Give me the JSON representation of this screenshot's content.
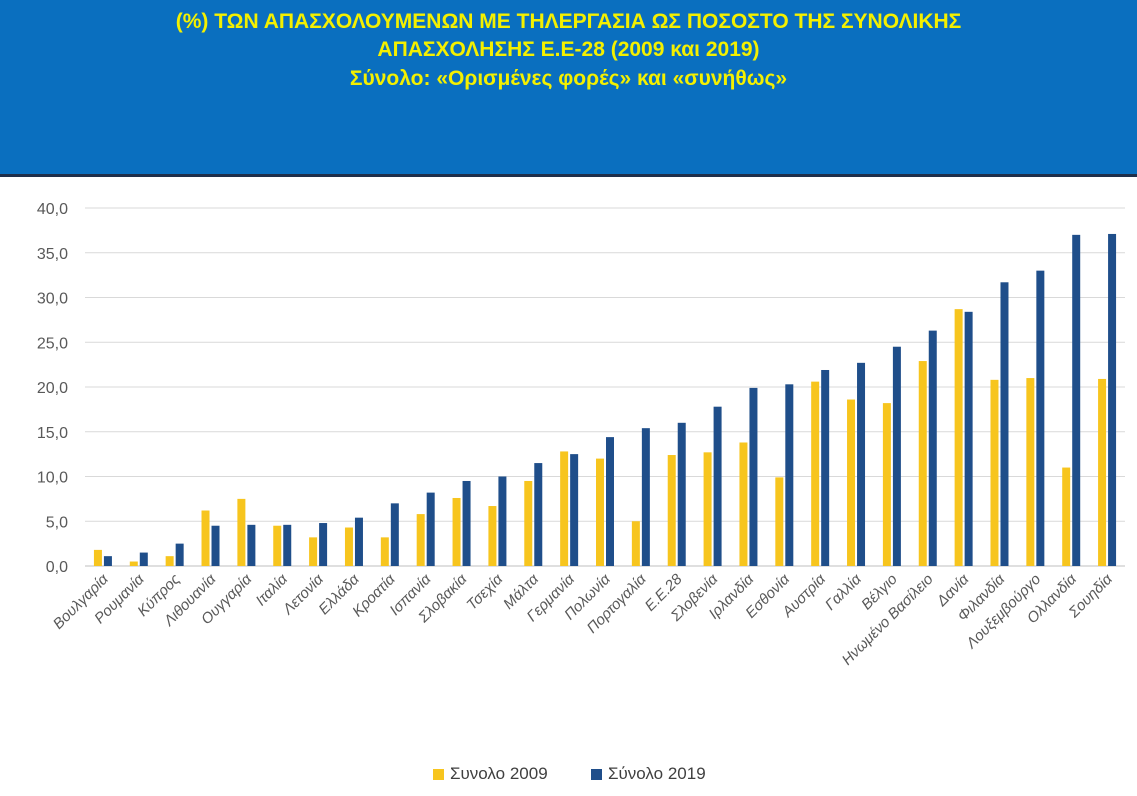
{
  "header": {
    "title_line1": "(%) ΤΩΝ ΑΠΑΣΧΟΛΟΥΜΕΝΩΝ  ΜΕ ΤΗΛΕΡΓΑΣΙΑ ΩΣ ΠΟΣΟΣΤΟ ΤΗΣ ΣΥΝΟΛΙΚΗΣ",
    "title_line2": "ΑΠΑΣΧΟΛΗΣΗΣ  Ε.Ε-28 (2009 και 2019)",
    "title_line3": "Σύνολο: «Ορισμένες φορές» και «συνήθως»"
  },
  "colors": {
    "banner": "#0a6fbf",
    "title": "#f4f000",
    "series_2009": "#f7c51e",
    "series_2019": "#1f4e8a"
  },
  "chart_data": {
    "type": "bar",
    "categories": [
      "Βουλγαρία",
      "Ρουμανία",
      "Κύπρος",
      "Λιθουανία",
      "Ουγγαρία",
      "Ιταλία",
      "Λετονία",
      "Ελλάδα",
      "Κροατία",
      "Ισπανία",
      "Σλοβακία",
      "Τσεχία",
      "Μάλτα",
      "Γερμανία",
      "Πολωνία",
      "Πορτογαλία",
      "Ε.Ε.28",
      "Σλοβενία",
      "Ιρλανδία",
      "Εσθονία",
      "Αυστρία",
      "Γαλλία",
      "Βέλγιο",
      "Ηνωμένο Βασίλειο",
      "Δανία",
      "Φιλανδία",
      "Λουξεμβούργο",
      "Ολλανδία",
      "Σουηδία"
    ],
    "series": [
      {
        "name": "Συνολο 2009",
        "values": [
          1.8,
          0.5,
          1.1,
          6.2,
          7.5,
          4.5,
          3.2,
          4.3,
          3.2,
          5.8,
          7.6,
          6.7,
          9.5,
          12.8,
          12.0,
          5.0,
          12.4,
          12.7,
          13.8,
          9.9,
          20.6,
          18.6,
          18.2,
          22.9,
          28.7,
          20.8,
          21.0,
          11.0,
          20.9
        ]
      },
      {
        "name": "Σύνολο 2019",
        "values": [
          1.1,
          1.5,
          2.5,
          4.5,
          4.6,
          4.6,
          4.8,
          5.4,
          7.0,
          8.2,
          9.5,
          10.0,
          11.5,
          12.5,
          14.4,
          15.4,
          16.0,
          17.8,
          19.9,
          20.3,
          21.9,
          22.7,
          24.5,
          26.3,
          28.4,
          31.7,
          33.0,
          37.0,
          37.1
        ]
      }
    ],
    "y_ticks": [
      "0,0",
      "5,0",
      "10,0",
      "15,0",
      "20,0",
      "25,0",
      "30,0",
      "35,0",
      "40,0"
    ],
    "ylim": [
      0,
      40
    ],
    "grid": true,
    "legend_position": "bottom"
  }
}
